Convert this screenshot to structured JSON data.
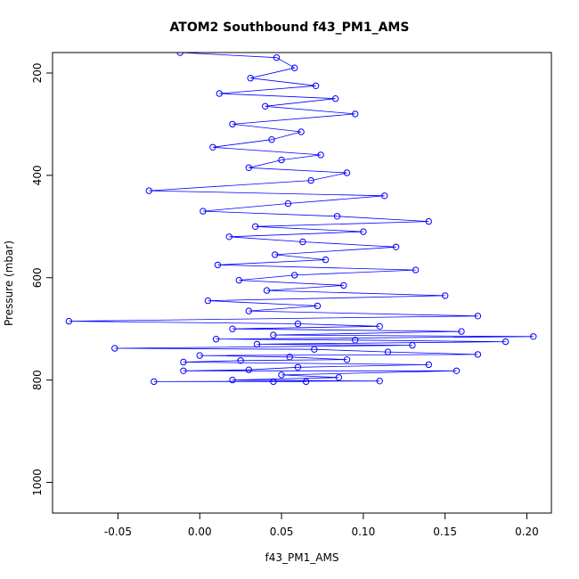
{
  "chart_data": {
    "type": "scatter",
    "title": "ATOM2 Southbound f43_PM1_AMS",
    "xlabel": "f43_PM1_AMS",
    "ylabel": "Pressure (mbar)",
    "xlim": [
      -0.09,
      0.215
    ],
    "ylim": [
      1060,
      160
    ],
    "y_reversed": true,
    "x_ticks": [
      -0.05,
      0.0,
      0.05,
      0.1,
      0.15,
      0.2
    ],
    "x_tick_labels": [
      "-0.05",
      "0.00",
      "0.05",
      "0.10",
      "0.15",
      "0.20"
    ],
    "y_ticks": [
      200,
      400,
      600,
      800,
      1000
    ],
    "y_tick_labels": [
      "200",
      "400",
      "600",
      "800",
      "1000"
    ],
    "grid": false,
    "marker": "open circle",
    "connected_by_lines": true,
    "series": [
      {
        "color": "#0000ff",
        "points": [
          [
            -0.012,
            160
          ],
          [
            0.047,
            170
          ],
          [
            0.058,
            190
          ],
          [
            0.031,
            210
          ],
          [
            0.071,
            225
          ],
          [
            0.012,
            240
          ],
          [
            0.083,
            250
          ],
          [
            0.04,
            265
          ],
          [
            0.095,
            280
          ],
          [
            0.02,
            300
          ],
          [
            0.062,
            315
          ],
          [
            0.044,
            330
          ],
          [
            0.008,
            345
          ],
          [
            0.074,
            360
          ],
          [
            0.05,
            370
          ],
          [
            0.03,
            385
          ],
          [
            0.09,
            395
          ],
          [
            0.068,
            410
          ],
          [
            -0.031,
            430
          ],
          [
            0.113,
            440
          ],
          [
            0.054,
            455
          ],
          [
            0.002,
            470
          ],
          [
            0.084,
            480
          ],
          [
            0.14,
            490
          ],
          [
            0.034,
            500
          ],
          [
            0.1,
            510
          ],
          [
            0.018,
            520
          ],
          [
            0.063,
            530
          ],
          [
            0.12,
            540
          ],
          [
            0.046,
            555
          ],
          [
            0.077,
            565
          ],
          [
            0.011,
            575
          ],
          [
            0.132,
            585
          ],
          [
            0.058,
            595
          ],
          [
            0.024,
            605
          ],
          [
            0.088,
            615
          ],
          [
            0.041,
            625
          ],
          [
            0.15,
            635
          ],
          [
            0.005,
            645
          ],
          [
            0.072,
            655
          ],
          [
            0.03,
            665
          ],
          [
            0.17,
            675
          ],
          [
            -0.08,
            685
          ],
          [
            0.06,
            690
          ],
          [
            0.11,
            695
          ],
          [
            0.02,
            700
          ],
          [
            0.16,
            705
          ],
          [
            0.045,
            712
          ],
          [
            0.204,
            715
          ],
          [
            0.01,
            720
          ],
          [
            0.095,
            722
          ],
          [
            0.187,
            725
          ],
          [
            0.035,
            730
          ],
          [
            0.13,
            732
          ],
          [
            -0.052,
            738
          ],
          [
            0.07,
            740
          ],
          [
            0.115,
            745
          ],
          [
            0.17,
            750
          ],
          [
            0.0,
            752
          ],
          [
            0.055,
            755
          ],
          [
            0.09,
            760
          ],
          [
            0.025,
            762
          ],
          [
            -0.01,
            765
          ],
          [
            0.14,
            770
          ],
          [
            0.06,
            775
          ],
          [
            0.03,
            780
          ],
          [
            -0.01,
            782
          ],
          [
            0.157,
            782
          ],
          [
            0.05,
            790
          ],
          [
            0.085,
            795
          ],
          [
            0.02,
            800
          ],
          [
            0.11,
            802
          ],
          [
            -0.028,
            803
          ],
          [
            0.065,
            803
          ],
          [
            0.045,
            803
          ]
        ]
      }
    ]
  }
}
